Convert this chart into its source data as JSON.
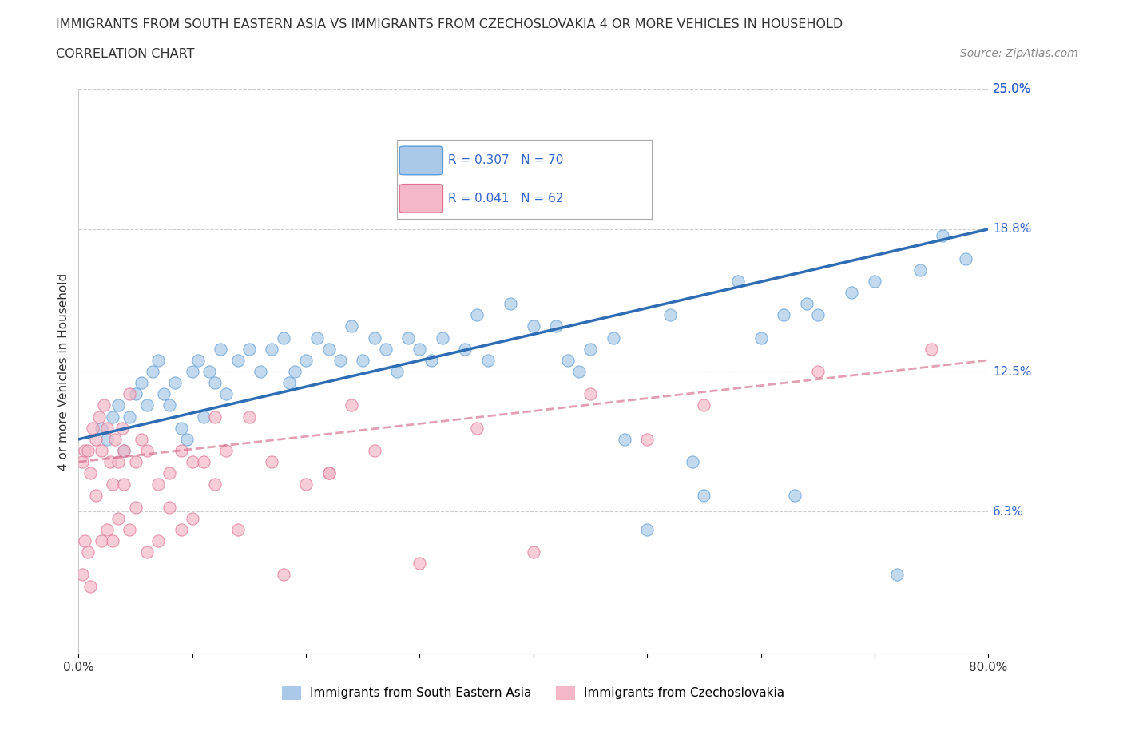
{
  "title_line1": "IMMIGRANTS FROM SOUTH EASTERN ASIA VS IMMIGRANTS FROM CZECHOSLOVAKIA 4 OR MORE VEHICLES IN HOUSEHOLD",
  "title_line2": "CORRELATION CHART",
  "source": "Source: ZipAtlas.com",
  "ylabel": "4 or more Vehicles in Household",
  "xlim": [
    0,
    80
  ],
  "ylim": [
    0,
    25
  ],
  "xtick_vals": [
    0,
    10,
    20,
    30,
    40,
    50,
    60,
    70,
    80
  ],
  "xtick_labels": [
    "0.0%",
    "",
    "",
    "",
    "",
    "",
    "",
    "",
    "80.0%"
  ],
  "ytick_right_vals": [
    6.3,
    12.5,
    18.8,
    25.0
  ],
  "ytick_right_labels": [
    "6.3%",
    "12.5%",
    "18.8%",
    "25.0%"
  ],
  "blue_color": "#aac9e8",
  "blue_edge_color": "#5b9bd5",
  "blue_line_color": "#2e6db4",
  "pink_color": "#f4b8c8",
  "pink_edge_color": "#e07090",
  "pink_line_color": "#d06080",
  "R_blue": 0.307,
  "N_blue": 70,
  "R_pink": 0.041,
  "N_pink": 62,
  "legend_label_blue": "Immigrants from South Eastern Asia",
  "legend_label_pink": "Immigrants from Czechoslovakia",
  "blue_x": [
    2.0,
    2.5,
    3.0,
    3.5,
    4.0,
    4.5,
    5.0,
    5.5,
    6.0,
    6.5,
    7.0,
    7.5,
    8.0,
    8.5,
    9.0,
    9.5,
    10.0,
    10.5,
    11.0,
    11.5,
    12.0,
    12.5,
    13.0,
    14.0,
    15.0,
    16.0,
    17.0,
    18.0,
    18.5,
    19.0,
    20.0,
    21.0,
    22.0,
    23.0,
    24.0,
    25.0,
    26.0,
    27.0,
    28.0,
    29.0,
    30.0,
    31.0,
    32.0,
    34.0,
    35.0,
    36.0,
    38.0,
    40.0,
    42.0,
    43.0,
    44.0,
    45.0,
    47.0,
    48.0,
    50.0,
    52.0,
    54.0,
    55.0,
    58.0,
    60.0,
    62.0,
    63.0,
    64.0,
    65.0,
    68.0,
    70.0,
    72.0,
    74.0,
    76.0,
    78.0
  ],
  "blue_y": [
    10.0,
    9.5,
    10.5,
    11.0,
    9.0,
    10.5,
    11.5,
    12.0,
    11.0,
    12.5,
    13.0,
    11.5,
    11.0,
    12.0,
    10.0,
    9.5,
    12.5,
    13.0,
    10.5,
    12.5,
    12.0,
    13.5,
    11.5,
    13.0,
    13.5,
    12.5,
    13.5,
    14.0,
    12.0,
    12.5,
    13.0,
    14.0,
    13.5,
    13.0,
    14.5,
    13.0,
    14.0,
    13.5,
    12.5,
    14.0,
    13.5,
    13.0,
    14.0,
    13.5,
    15.0,
    13.0,
    15.5,
    14.5,
    14.5,
    13.0,
    12.5,
    13.5,
    14.0,
    9.5,
    5.5,
    15.0,
    8.5,
    7.0,
    16.5,
    14.0,
    15.0,
    7.0,
    15.5,
    15.0,
    16.0,
    16.5,
    3.5,
    17.0,
    18.5,
    17.5
  ],
  "pink_x": [
    0.3,
    0.5,
    0.8,
    1.0,
    1.2,
    1.5,
    1.8,
    2.0,
    2.2,
    2.5,
    2.8,
    3.0,
    3.2,
    3.5,
    3.8,
    4.0,
    4.5,
    5.0,
    5.5,
    6.0,
    7.0,
    8.0,
    9.0,
    10.0,
    11.0,
    12.0,
    13.0,
    15.0,
    17.0,
    20.0,
    22.0,
    24.0,
    26.0,
    35.0,
    45.0,
    55.0,
    65.0,
    75.0,
    0.3,
    0.5,
    0.8,
    1.0,
    1.5,
    2.0,
    2.5,
    3.0,
    3.5,
    4.0,
    4.5,
    5.0,
    6.0,
    7.0,
    8.0,
    9.0,
    10.0,
    12.0,
    14.0,
    18.0,
    22.0,
    30.0,
    40.0,
    50.0
  ],
  "pink_y": [
    8.5,
    9.0,
    9.0,
    8.0,
    10.0,
    9.5,
    10.5,
    9.0,
    11.0,
    10.0,
    8.5,
    7.5,
    9.5,
    8.5,
    10.0,
    9.0,
    11.5,
    8.5,
    9.5,
    9.0,
    7.5,
    8.0,
    9.0,
    8.5,
    8.5,
    10.5,
    9.0,
    10.5,
    8.5,
    7.5,
    8.0,
    11.0,
    9.0,
    10.0,
    11.5,
    11.0,
    12.5,
    13.5,
    3.5,
    5.0,
    4.5,
    3.0,
    7.0,
    5.0,
    5.5,
    5.0,
    6.0,
    7.5,
    5.5,
    6.5,
    4.5,
    5.0,
    6.5,
    5.5,
    6.0,
    7.5,
    5.5,
    3.5,
    8.0,
    4.0,
    4.5,
    9.5
  ],
  "grid_color": "#cccccc",
  "bg_color": "#ffffff",
  "text_color_blue": "#2e6db4",
  "text_color_label": "#3366cc",
  "text_color_dark": "#333333"
}
